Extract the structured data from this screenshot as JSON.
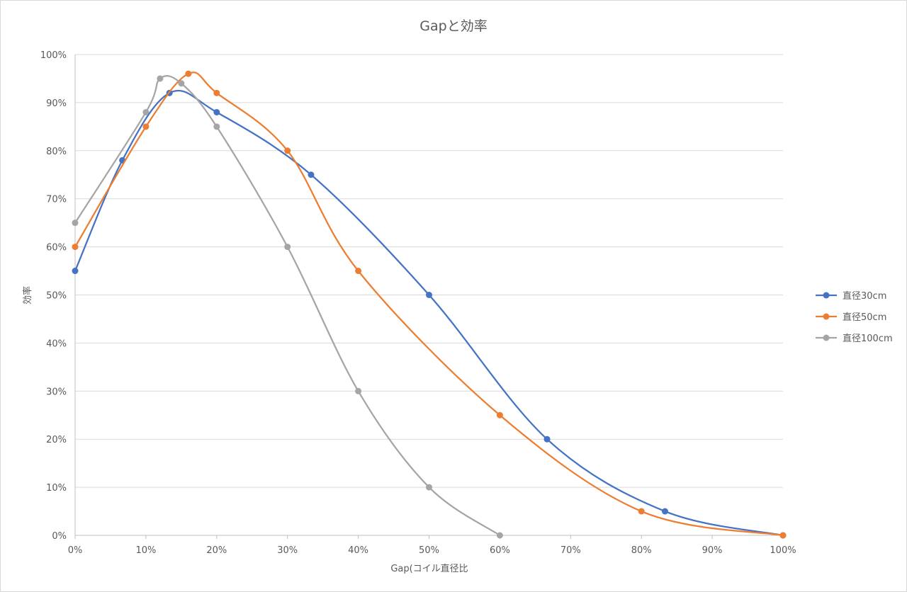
{
  "chart_data": {
    "type": "line",
    "title": "Gapと効率",
    "xlabel": "Gap(コイル直径比",
    "ylabel": "効率",
    "xlim": [
      0,
      1
    ],
    "ylim": [
      0,
      1
    ],
    "x_ticks": [
      "0%",
      "10%",
      "20%",
      "30%",
      "40%",
      "50%",
      "60%",
      "70%",
      "80%",
      "90%",
      "100%"
    ],
    "y_ticks": [
      "0%",
      "10%",
      "20%",
      "30%",
      "40%",
      "50%",
      "60%",
      "70%",
      "80%",
      "90%",
      "100%"
    ],
    "grid": "horizontal",
    "smooth": true,
    "legend_position": "right",
    "series": [
      {
        "name": "直径30cm",
        "color": "#4472C4",
        "points": [
          [
            0,
            0.55
          ],
          [
            0.0667,
            0.78
          ],
          [
            0.1333,
            0.92
          ],
          [
            0.2,
            0.88
          ],
          [
            0.3333,
            0.75
          ],
          [
            0.5,
            0.5
          ],
          [
            0.6667,
            0.2
          ],
          [
            0.8333,
            0.05
          ],
          [
            1.0,
            0.0
          ]
        ]
      },
      {
        "name": "直径50cm",
        "color": "#ED7D31",
        "points": [
          [
            0,
            0.6
          ],
          [
            0.1,
            0.85
          ],
          [
            0.16,
            0.96
          ],
          [
            0.2,
            0.92
          ],
          [
            0.3,
            0.8
          ],
          [
            0.4,
            0.55
          ],
          [
            0.6,
            0.25
          ],
          [
            0.8,
            0.05
          ],
          [
            1.0,
            0.0
          ]
        ]
      },
      {
        "name": "直径100cm",
        "color": "#A5A5A5",
        "points": [
          [
            0,
            0.65
          ],
          [
            0.1,
            0.88
          ],
          [
            0.12,
            0.95
          ],
          [
            0.15,
            0.94
          ],
          [
            0.2,
            0.85
          ],
          [
            0.3,
            0.6
          ],
          [
            0.4,
            0.3
          ],
          [
            0.5,
            0.1
          ],
          [
            0.6,
            0.0
          ]
        ]
      }
    ]
  }
}
